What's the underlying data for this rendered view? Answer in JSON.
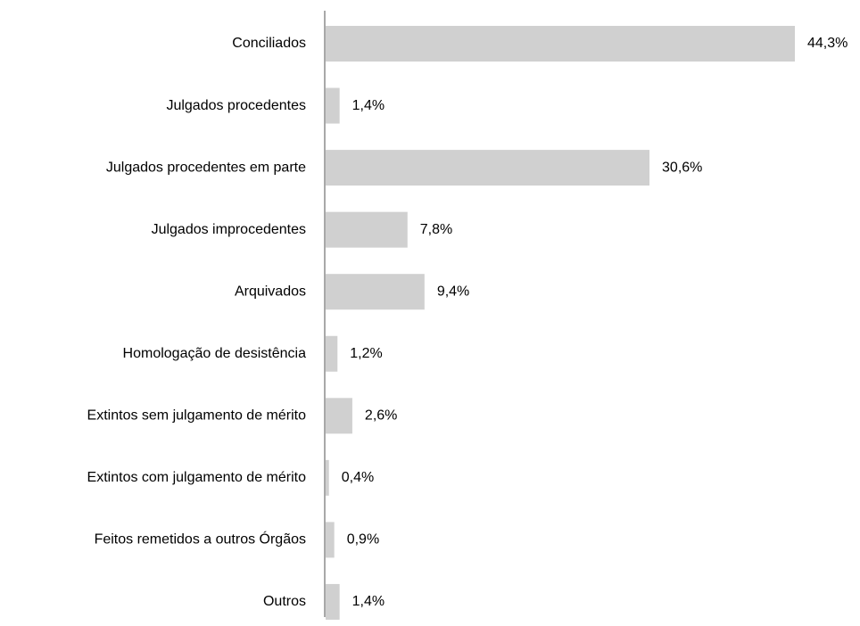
{
  "chart_data": {
    "type": "hbar",
    "categories": [
      "Conciliados",
      "Julgados procedentes",
      "Julgados procedentes em parte",
      "Julgados improcedentes",
      "Arquivados",
      "Homologação de desistência",
      "Extintos sem julgamento de mérito",
      "Extintos com julgamento de mérito",
      "Feitos remetidos a outros Órgãos",
      "Outros"
    ],
    "values": [
      44.3,
      1.4,
      30.6,
      7.8,
      9.4,
      1.2,
      2.6,
      0.4,
      0.9,
      1.4
    ],
    "value_labels": [
      "44,3%",
      "1,4%",
      "30,6%",
      "7,8%",
      "9,4%",
      "1,2%",
      "2,6%",
      "0,4%",
      "0,9%",
      "1,4%"
    ],
    "color": "#d0d0d0"
  }
}
